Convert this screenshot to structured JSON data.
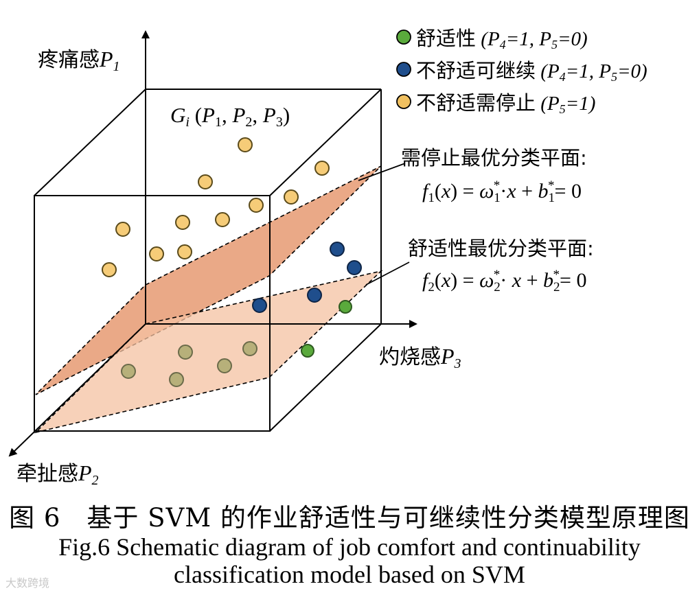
{
  "axes": {
    "p1_label": "疼痛感",
    "p1_var": "P",
    "p1_sub": "1",
    "p2_label": "牵扯感",
    "p2_var": "P",
    "p2_sub": "2",
    "p3_label": "灼烧感",
    "p3_var": "P",
    "p3_sub": "3"
  },
  "point_label": {
    "g": "G",
    "i": "i",
    "args": [
      "P",
      "1",
      "P",
      "2",
      "P",
      "3"
    ]
  },
  "legend": [
    {
      "text": "舒适性",
      "cond": "(P4=1, P5=0)",
      "color": "#5aaa3c"
    },
    {
      "text": "不舒适可继续",
      "cond": "(P4=1, P5=0)",
      "color": "#1f4e8c"
    },
    {
      "text": "不舒适需停止",
      "cond": "(P5=1)",
      "color": "#f0c060"
    }
  ],
  "planes": {
    "stop_title": "需停止最优分类平面:",
    "stop_formula": "f1(x) = ω1*·x + b1*= 0",
    "comfort_title": "舒适性最优分类平面:",
    "comfort_formula": "f2(x) = ω2*· x + b2*= 0"
  },
  "colors": {
    "yellow_point": "#f6cc78",
    "blue_point": "#1f4e8c",
    "green_point": "#5aaa3c",
    "stop_plane": "#e69a72",
    "comfort_plane": "#f4c2a2"
  },
  "caption": {
    "cn": "图 6　基于 SVM 的作业舒适性与可继续性分类模型原理图",
    "en_line1": "Fig.6 Schematic diagram of job comfort and continuability",
    "en_line2": "classification model based on SVM"
  },
  "watermark": "大数跨境"
}
